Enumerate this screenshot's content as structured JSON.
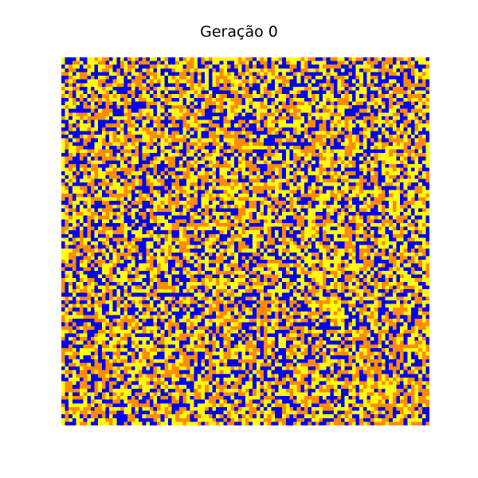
{
  "title": "Geração 0",
  "grid": {
    "rows": 100,
    "cols": 100,
    "seed": 20250101,
    "palette": {
      "blue": "#0000ff",
      "orange": "#ff8c00",
      "yellow": "#ffff00"
    },
    "weights": {
      "blue": 0.33,
      "orange": 0.33,
      "yellow": 0.34
    }
  }
}
